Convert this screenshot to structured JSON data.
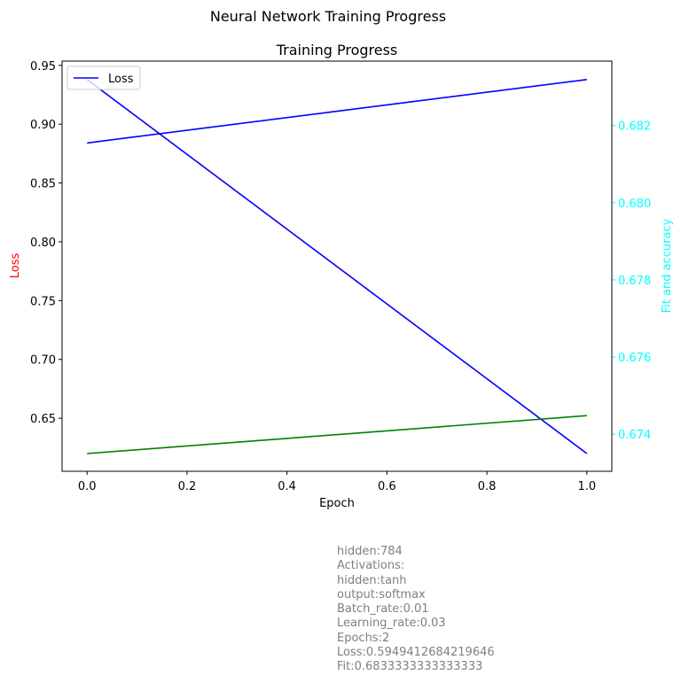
{
  "figure": {
    "suptitle": "Neural Network Training Progress"
  },
  "chart_data": {
    "type": "line",
    "title": "Training Progress",
    "xlabel": "Epoch",
    "ylabel_left": "Loss",
    "ylabel_right": "Fit and accuracy",
    "xlim": [
      -0.05,
      1.05
    ],
    "ylim_left": [
      0.6049,
      0.9536
    ],
    "ylim_right": [
      0.67304,
      0.68367
    ],
    "x_ticks": [
      "0.0",
      "0.2",
      "0.4",
      "0.6",
      "0.8",
      "1.0"
    ],
    "y_left_ticks": [
      "0.65",
      "0.70",
      "0.75",
      "0.80",
      "0.85",
      "0.90",
      "0.95"
    ],
    "y_right_ticks": [
      "0.674",
      "0.676",
      "0.678",
      "0.680",
      "0.682"
    ],
    "colors": {
      "left_label": "#ff0000",
      "right_axis": "#00ffff"
    },
    "legend": {
      "position": "upper-left",
      "entries": [
        "Loss"
      ]
    },
    "grid": false,
    "series": [
      {
        "name": "Loss",
        "axis": "left",
        "color": "#0000ff",
        "x": [
          0,
          1
        ],
        "y": [
          0.9379,
          0.62
        ]
      },
      {
        "axis": "left",
        "color": "#0000ff",
        "x": [
          0,
          1
        ],
        "y": [
          0.884,
          0.9379
        ]
      },
      {
        "axis": "left",
        "color": "#008000",
        "x": [
          0,
          1
        ],
        "y": [
          0.62,
          0.6522
        ]
      }
    ]
  },
  "info": {
    "color": "#808080",
    "lines": [
      "hidden:784",
      "Activations:",
      "hidden:tanh",
      "output:softmax",
      "Batch_rate:0.01",
      "Learning_rate:0.03",
      "Epochs:2",
      "Loss:0.5949412684219646",
      "Fit:0.6833333333333333"
    ]
  }
}
